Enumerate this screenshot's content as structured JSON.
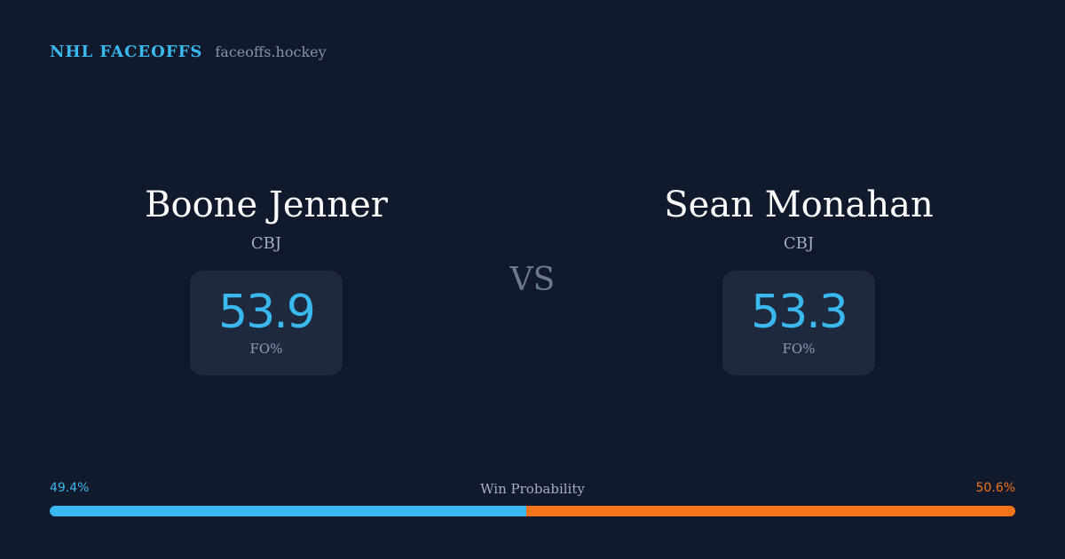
{
  "header": {
    "brand": "NHL FACEOFFS",
    "domain": "faceoffs.hockey"
  },
  "players": {
    "left": {
      "name": "Boone Jenner",
      "team": "CBJ",
      "stat_value": "53.9",
      "stat_label": "FO%"
    },
    "right": {
      "name": "Sean Monahan",
      "team": "CBJ",
      "stat_value": "53.3",
      "stat_label": "FO%"
    }
  },
  "versus_label": "VS",
  "win_probability": {
    "title": "Win Probability",
    "left_label": "49.4%",
    "right_label": "50.6%",
    "left_fraction": 0.494,
    "right_fraction": 0.506
  },
  "colors": {
    "background": "#111a2c",
    "accent_blue": "#39b9f0",
    "accent_orange": "#f57418",
    "card": "#1e293d"
  }
}
